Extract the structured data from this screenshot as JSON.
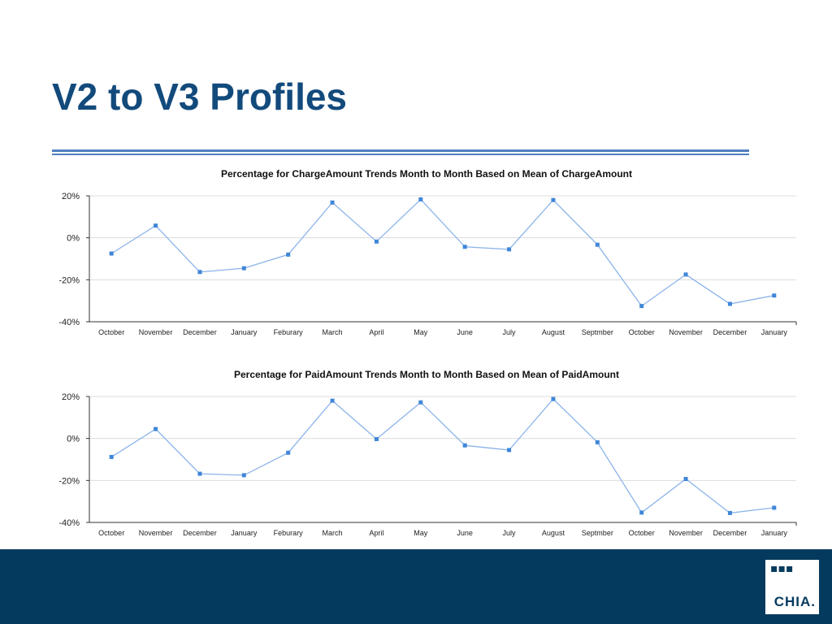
{
  "slide": {
    "title": "V2 to V3 Profiles"
  },
  "colors": {
    "title": "#134a7c",
    "rule": "#4f7fc1",
    "series_line": "#8cb4ea",
    "series_marker": "#3f86d8",
    "footer": "#043a5e"
  },
  "footer": {
    "logo_mark": "▪▪▪",
    "logo_text": "CHIA."
  },
  "chart_data": [
    {
      "type": "line",
      "title": "Percentage for ChargeAmount Trends Month to Month Based on Mean of ChargeAmount",
      "xlabel": "",
      "ylabel": "",
      "categories": [
        "October",
        "November",
        "December",
        "January",
        "Feburary",
        "March",
        "April",
        "May",
        "June",
        "July",
        "August",
        "Septmber",
        "October",
        "November",
        "December",
        "January"
      ],
      "series": [
        {
          "values": [
            -7.5,
            5.8,
            -16.3,
            -14.5,
            -8.0,
            16.8,
            -1.8,
            18.3,
            -4.3,
            -5.5,
            18.0,
            -3.3,
            -32.5,
            -17.5,
            -31.5,
            -27.5
          ]
        }
      ],
      "ylim": [
        -40,
        20
      ],
      "yticks": [
        20,
        0,
        -20,
        -40
      ],
      "ytick_labels": [
        "20%",
        "0%",
        "-20%",
        "-40%"
      ],
      "grid": true,
      "legend": "none"
    },
    {
      "type": "line",
      "title": "Percentage for PaidAmount Trends Month to Month Based on Mean of PaidAmount",
      "xlabel": "",
      "ylabel": "",
      "categories": [
        "October",
        "November",
        "December",
        "January",
        "Feburary",
        "March",
        "April",
        "May",
        "June",
        "July",
        "August",
        "Septmber",
        "October",
        "November",
        "December",
        "January"
      ],
      "series": [
        {
          "values": [
            -8.8,
            4.5,
            -16.8,
            -17.5,
            -6.8,
            18.0,
            -0.3,
            17.2,
            -3.3,
            -5.5,
            18.8,
            -1.8,
            -35.3,
            -19.3,
            -35.5,
            -33.0
          ]
        }
      ],
      "ylim": [
        -40,
        20
      ],
      "yticks": [
        20,
        0,
        -20,
        -40
      ],
      "ytick_labels": [
        "20%",
        "0%",
        "-20%",
        "-40%"
      ],
      "grid": true,
      "legend": "none"
    }
  ]
}
